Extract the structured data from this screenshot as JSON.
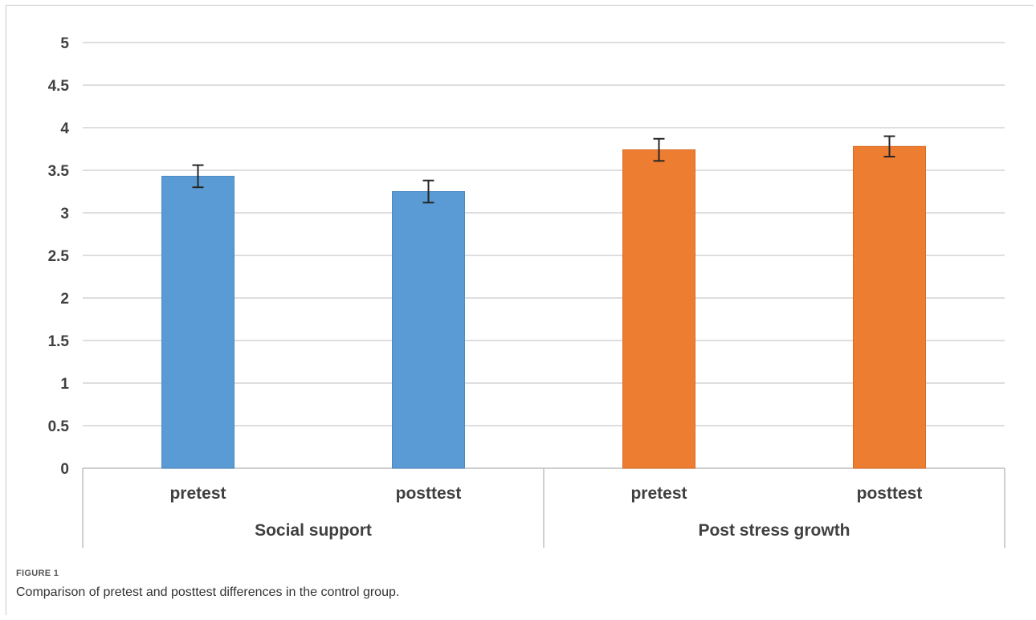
{
  "chart_data": {
    "type": "bar",
    "title": "",
    "xlabel": "",
    "ylabel": "",
    "ylim": [
      0,
      5
    ],
    "yticks": [
      0,
      0.5,
      1,
      1.5,
      2,
      2.5,
      3,
      3.5,
      4,
      4.5,
      5
    ],
    "ytick_labels": [
      "0",
      "0.5",
      "1",
      "1.5",
      "2",
      "2.5",
      "3",
      "3.5",
      "4",
      "4.5",
      "5"
    ],
    "grid": true,
    "legend": "none",
    "groups": [
      {
        "label": "Social support",
        "color": "#5B9BD5",
        "bars": [
          {
            "category": "pretest",
            "value": 3.43,
            "error": 0.13
          },
          {
            "category": "posttest",
            "value": 3.25,
            "error": 0.13
          }
        ]
      },
      {
        "label": "Post stress growth",
        "color": "#ED7D31",
        "bars": [
          {
            "category": "pretest",
            "value": 3.74,
            "error": 0.13
          },
          {
            "category": "posttest",
            "value": 3.78,
            "error": 0.12
          }
        ]
      }
    ]
  },
  "caption": {
    "label": "FIGURE 1",
    "text": "Comparison of pretest and posttest differences in the control group."
  }
}
